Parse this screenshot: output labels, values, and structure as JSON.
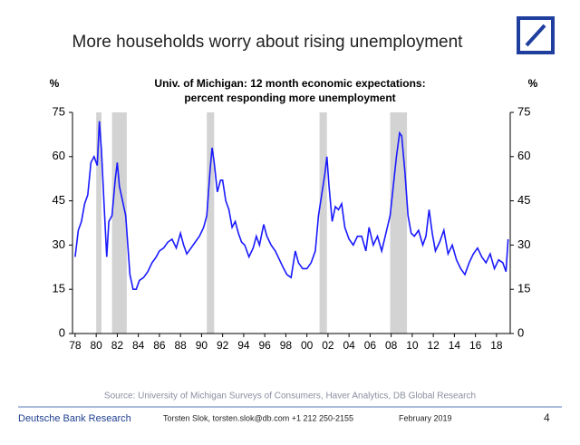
{
  "header": {
    "title": "More households worry about rising unemployment"
  },
  "chart_data": {
    "type": "line",
    "subtitle": [
      "Univ. of Michigan: 12 month economic expectations:",
      "percent responding more unemployment"
    ],
    "y_label": "%",
    "y2_label": "%",
    "xlim": [
      1977.75,
      2019.3
    ],
    "xticks": [
      {
        "value": 1978,
        "label": "78"
      },
      {
        "value": 1980,
        "label": "80"
      },
      {
        "value": 1982,
        "label": "82"
      },
      {
        "value": 1984,
        "label": "84"
      },
      {
        "value": 1986,
        "label": "86"
      },
      {
        "value": 1988,
        "label": "88"
      },
      {
        "value": 1990,
        "label": "90"
      },
      {
        "value": 1992,
        "label": "92"
      },
      {
        "value": 1994,
        "label": "94"
      },
      {
        "value": 1996,
        "label": "96"
      },
      {
        "value": 1998,
        "label": "98"
      },
      {
        "value": 2000,
        "label": "00"
      },
      {
        "value": 2002,
        "label": "02"
      },
      {
        "value": 2004,
        "label": "04"
      },
      {
        "value": 2006,
        "label": "06"
      },
      {
        "value": 2008,
        "label": "08"
      },
      {
        "value": 2010,
        "label": "10"
      },
      {
        "value": 2012,
        "label": "12"
      },
      {
        "value": 2014,
        "label": "14"
      },
      {
        "value": 2016,
        "label": "16"
      },
      {
        "value": 2018,
        "label": "18"
      }
    ],
    "ylim": [
      0,
      75
    ],
    "yticks": [
      0,
      15,
      30,
      45,
      60,
      75
    ],
    "y2lim": [
      0,
      75
    ],
    "y2ticks": [
      0,
      15,
      30,
      45,
      60,
      75
    ],
    "shaded_ranges": [
      [
        1980.0,
        1980.5
      ],
      [
        1981.5,
        1982.9
      ],
      [
        1990.5,
        1991.2
      ],
      [
        2001.2,
        2001.9
      ],
      [
        2007.9,
        2009.5
      ]
    ],
    "shade_color": "#d3d3d3",
    "color": "#1a1aff",
    "x": [
      1978.0,
      1978.3,
      1978.6,
      1978.9,
      1979.2,
      1979.5,
      1979.8,
      1980.1,
      1980.3,
      1980.5,
      1980.8,
      1981.0,
      1981.2,
      1981.5,
      1981.8,
      1982.0,
      1982.2,
      1982.5,
      1982.8,
      1983.0,
      1983.2,
      1983.5,
      1983.8,
      1984.1,
      1984.5,
      1984.9,
      1985.3,
      1985.7,
      1986.0,
      1986.4,
      1986.8,
      1987.2,
      1987.6,
      1988.0,
      1988.3,
      1988.6,
      1989.0,
      1989.4,
      1989.8,
      1990.2,
      1990.5,
      1990.8,
      1991.0,
      1991.2,
      1991.5,
      1991.8,
      1992.0,
      1992.3,
      1992.6,
      1992.9,
      1993.2,
      1993.5,
      1993.8,
      1994.1,
      1994.5,
      1994.9,
      1995.2,
      1995.5,
      1995.9,
      1996.2,
      1996.6,
      1997.0,
      1997.4,
      1997.8,
      1998.1,
      1998.5,
      1998.9,
      1999.2,
      1999.6,
      2000.0,
      2000.4,
      2000.8,
      2001.1,
      2001.4,
      2001.7,
      2001.9,
      2002.1,
      2002.4,
      2002.7,
      2003.0,
      2003.3,
      2003.6,
      2004.0,
      2004.4,
      2004.8,
      2005.2,
      2005.6,
      2005.9,
      2006.3,
      2006.7,
      2007.1,
      2007.5,
      2007.9,
      2008.2,
      2008.5,
      2008.8,
      2009.0,
      2009.3,
      2009.6,
      2009.9,
      2010.2,
      2010.6,
      2011.0,
      2011.3,
      2011.6,
      2011.9,
      2012.2,
      2012.6,
      2013.0,
      2013.4,
      2013.8,
      2014.2,
      2014.6,
      2015.0,
      2015.4,
      2015.8,
      2016.2,
      2016.6,
      2017.0,
      2017.4,
      2017.8,
      2018.2,
      2018.6,
      2018.9,
      2019.1
    ],
    "values": [
      26,
      35,
      38,
      44,
      47,
      58,
      60,
      57,
      72,
      62,
      40,
      26,
      38,
      40,
      52,
      58,
      50,
      45,
      40,
      30,
      20,
      15,
      15,
      18,
      19,
      21,
      24,
      26,
      28,
      29,
      31,
      32,
      29,
      34,
      30,
      27,
      29,
      31,
      33,
      36,
      40,
      55,
      63,
      58,
      48,
      52,
      52,
      45,
      42,
      36,
      38,
      34,
      31,
      30,
      26,
      29,
      33,
      30,
      37,
      33,
      30,
      28,
      25,
      22,
      20,
      19,
      28,
      24,
      22,
      22,
      24,
      28,
      40,
      47,
      54,
      60,
      50,
      38,
      43,
      42,
      44,
      36,
      32,
      30,
      33,
      33,
      28,
      36,
      30,
      33,
      28,
      34,
      40,
      50,
      60,
      68,
      67,
      55,
      40,
      34,
      33,
      35,
      30,
      33,
      42,
      34,
      28,
      31,
      35,
      27,
      30,
      25,
      22,
      20,
      24,
      27,
      29,
      26,
      24,
      27,
      22,
      25,
      24,
      21,
      32
    ]
  },
  "footer": {
    "source": "Source: University of Michigan Surveys of Consumers, Haver Analytics, DB Global Research",
    "brand": "Deutsche Bank Research",
    "author": "Torsten Slok, torsten.slok@db.com +1 212 250-2155",
    "date": "February 2019",
    "page": "4"
  }
}
